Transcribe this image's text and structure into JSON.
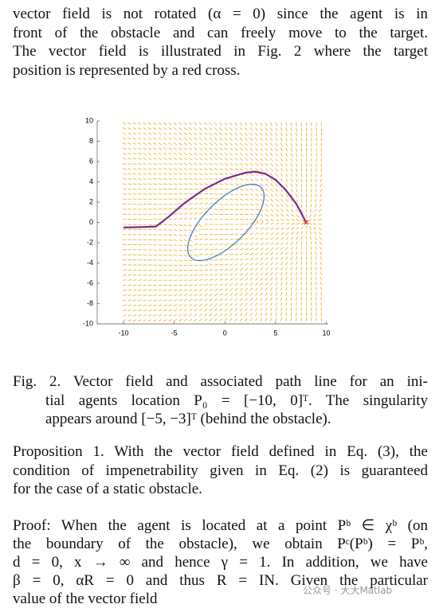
{
  "text_top": {
    "lines": [
      "vector field is not rotated (α = 0) since the agent is in",
      "front of the obstacle and can freely move to the target.",
      "The vector field is illustrated in Fig. 2 where the target",
      "position is represented by a red cross."
    ]
  },
  "chart_data": {
    "type": "quiver",
    "xlim": [
      -12.6,
      10.2
    ],
    "ylim": [
      -10,
      10
    ],
    "xticks": [
      -10,
      -5,
      0,
      5,
      10
    ],
    "yticks": [
      -10,
      -8,
      -6,
      -4,
      -2,
      0,
      2,
      4,
      6,
      8,
      10
    ],
    "field_color": "#f2a71b",
    "path": {
      "color": "#7b2a8c",
      "x": [
        -10,
        -8,
        -6.8,
        -5.5,
        -4,
        -2,
        0,
        2,
        3,
        4,
        5,
        6,
        7,
        7.6,
        8
      ],
      "y": [
        -0.5,
        -0.45,
        -0.4,
        0.6,
        1.9,
        3.3,
        4.3,
        4.9,
        5,
        4.8,
        4.2,
        3.2,
        1.9,
        0.8,
        0
      ]
    },
    "obstacle": {
      "color": "#3b86c4",
      "cx": 0.1,
      "cy": 0,
      "rx": 4.9,
      "ry": 2.1,
      "angle": 45
    },
    "target": {
      "color": "#e03a3a",
      "x": 8,
      "y": 0
    }
  },
  "caption": {
    "lines": [
      "Fig. 2. Vector field and associated path line for an ini-",
      "tial agents location P₀ = [−10, 0]ᵀ. The singularity",
      "appears around [−5, −3]ᵀ (behind the obstacle)."
    ]
  },
  "proposition": {
    "lines": [
      "Proposition 1. With the vector field defined in Eq. (3), the",
      "condition of impenetrability given in Eq. (2) is guaranteed",
      "for the case of a static obstacle."
    ]
  },
  "proof": {
    "lines": [
      "Proof: When the agent is located at a point Pᵇ ∈ χᵇ (on",
      "the boundary of the obstacle), we obtain Pᶜ(Pᵇ) = Pᵇ,",
      "d = 0, x → ∞ and hence γ = 1. In addition, we have",
      "β = 0, αR = 0 and thus R = IN. Given the particular",
      "value of the vector field"
    ]
  },
  "watermark": "公众号 · 大大Matlab"
}
